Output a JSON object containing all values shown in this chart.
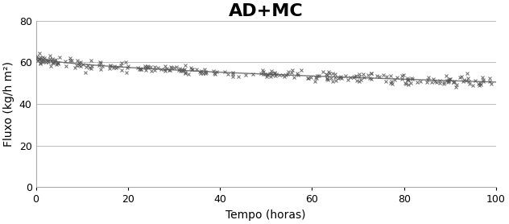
{
  "title": "AD+MC",
  "xlabel": "Tempo (horas)",
  "ylabel": "Fluxo (kg/h m²)",
  "xlim": [
    0,
    100
  ],
  "ylim": [
    0,
    80
  ],
  "yticks": [
    0,
    20,
    40,
    60,
    80
  ],
  "xticks": [
    0,
    20,
    40,
    60,
    80,
    100
  ],
  "title_fontsize": 16,
  "axis_label_fontsize": 10,
  "tick_fontsize": 9,
  "marker_color": "#555555",
  "trend_color": "#777777",
  "background_color": "#ffffff",
  "grid_color": "#bbbbbb",
  "seed": 42,
  "n_points": 280,
  "start_flux": 62.5,
  "end_flux": 50.5,
  "noise_std": 1.2
}
